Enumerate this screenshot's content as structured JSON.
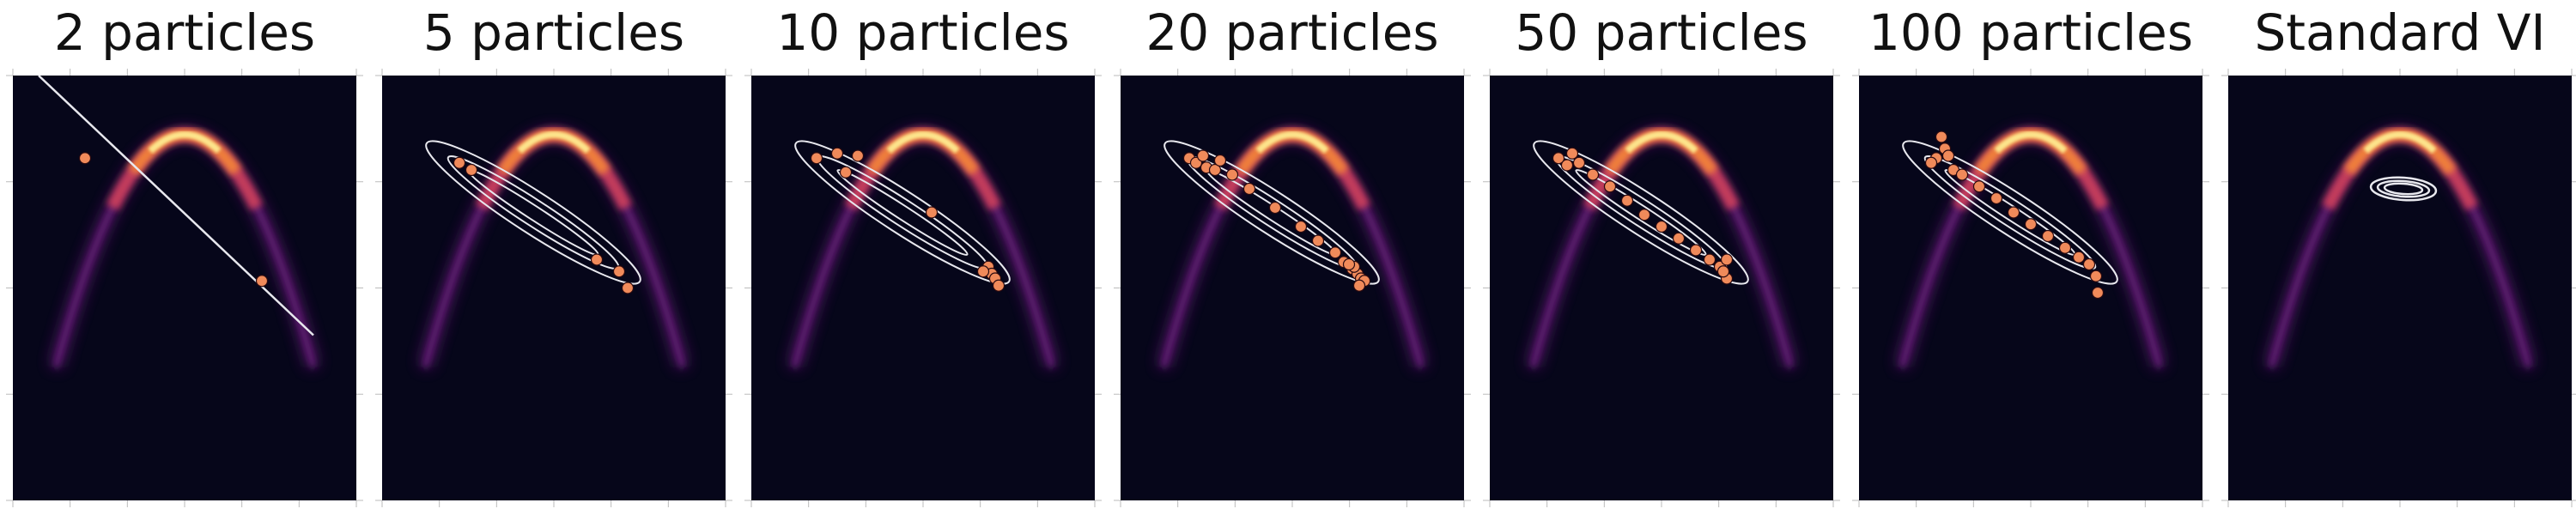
{
  "figure": {
    "background": "#ffffff"
  },
  "colors": {
    "plot_background": "#06061a",
    "density_bright": "#fde58c",
    "density_mid": "#f0803a",
    "density_low": "#d7435a",
    "density_faint": "#6a1f7d",
    "particle": "#f08a5a",
    "contour": "#e8e8ee",
    "tick": "#bbbbbb"
  },
  "chart_data": [
    {
      "type": "heatmap",
      "title": "2 particles",
      "density": "banana-shaped (curved) target density",
      "overlay": "line",
      "particles": [
        [
          -0.58,
          0.85
        ],
        [
          0.45,
          0.33
        ]
      ]
    },
    {
      "type": "heatmap",
      "title": "5 particles",
      "density": "banana-shaped (curved) target density",
      "overlay": "ellipses",
      "particles": [
        [
          -0.55,
          0.83
        ],
        [
          -0.48,
          0.8
        ],
        [
          0.25,
          0.42
        ],
        [
          0.38,
          0.37
        ],
        [
          0.43,
          0.3
        ]
      ]
    },
    {
      "type": "heatmap",
      "title": "10 particles",
      "density": "banana-shaped (curved) target density",
      "overlay": "ellipses",
      "particles": [
        [
          -0.62,
          0.85
        ],
        [
          -0.5,
          0.87
        ],
        [
          -0.45,
          0.79
        ],
        [
          -0.38,
          0.86
        ],
        [
          0.05,
          0.62
        ],
        [
          0.38,
          0.39
        ],
        [
          0.4,
          0.36
        ],
        [
          0.42,
          0.34
        ],
        [
          0.35,
          0.37
        ],
        [
          0.44,
          0.31
        ]
      ]
    },
    {
      "type": "heatmap",
      "title": "20 particles",
      "density": "banana-shaped (curved) target density",
      "overlay": "ellipses",
      "particles": [
        [
          -0.6,
          0.85
        ],
        [
          -0.56,
          0.83
        ],
        [
          -0.52,
          0.86
        ],
        [
          -0.5,
          0.81
        ],
        [
          -0.45,
          0.8
        ],
        [
          -0.42,
          0.84
        ],
        [
          -0.35,
          0.78
        ],
        [
          -0.25,
          0.72
        ],
        [
          -0.1,
          0.64
        ],
        [
          0.05,
          0.56
        ],
        [
          0.15,
          0.5
        ],
        [
          0.25,
          0.45
        ],
        [
          0.3,
          0.41
        ],
        [
          0.35,
          0.38
        ],
        [
          0.38,
          0.36
        ],
        [
          0.4,
          0.34
        ],
        [
          0.42,
          0.33
        ],
        [
          0.36,
          0.39
        ],
        [
          0.33,
          0.4
        ],
        [
          0.39,
          0.31
        ]
      ]
    },
    {
      "type": "heatmap",
      "title": "50 particles",
      "density": "banana-shaped (curved) target density",
      "overlay": "ellipses",
      "particles": [
        [
          -0.6,
          0.85
        ],
        [
          -0.55,
          0.82
        ],
        [
          -0.52,
          0.87
        ],
        [
          -0.48,
          0.83
        ],
        [
          -0.4,
          0.78
        ],
        [
          -0.3,
          0.73
        ],
        [
          -0.2,
          0.67
        ],
        [
          -0.1,
          0.61
        ],
        [
          0.0,
          0.56
        ],
        [
          0.1,
          0.51
        ],
        [
          0.2,
          0.46
        ],
        [
          0.28,
          0.42
        ],
        [
          0.34,
          0.39
        ],
        [
          0.38,
          0.42
        ],
        [
          0.38,
          0.34
        ],
        [
          0.36,
          0.37
        ]
      ]
    },
    {
      "type": "heatmap",
      "title": "100 particles",
      "density": "banana-shaped (curved) target density",
      "overlay": "ellipses",
      "particles": [
        [
          -0.52,
          0.94
        ],
        [
          -0.5,
          0.89
        ],
        [
          -0.55,
          0.85
        ],
        [
          -0.48,
          0.86
        ],
        [
          -0.58,
          0.83
        ],
        [
          -0.45,
          0.8
        ],
        [
          -0.4,
          0.78
        ],
        [
          -0.3,
          0.73
        ],
        [
          -0.2,
          0.68
        ],
        [
          -0.1,
          0.62
        ],
        [
          0.0,
          0.57
        ],
        [
          0.1,
          0.52
        ],
        [
          0.2,
          0.47
        ],
        [
          0.28,
          0.43
        ],
        [
          0.34,
          0.4
        ],
        [
          0.38,
          0.35
        ],
        [
          0.39,
          0.28
        ]
      ]
    },
    {
      "type": "heatmap",
      "title": "Standard VI",
      "density": "banana-shaped (curved) target density",
      "overlay": "small ellipses",
      "particles": []
    }
  ]
}
